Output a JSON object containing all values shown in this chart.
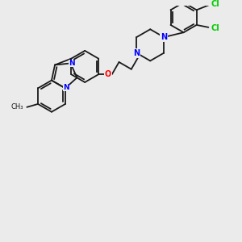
{
  "bg_color": "#ebebeb",
  "bond_color": "#1a1a1a",
  "N_color": "#0000ff",
  "O_color": "#ff0000",
  "Cl_color": "#00cc00",
  "CH3_label": "CH₃",
  "N_label": "N",
  "O_label": "O",
  "Cl_label": "Cl"
}
